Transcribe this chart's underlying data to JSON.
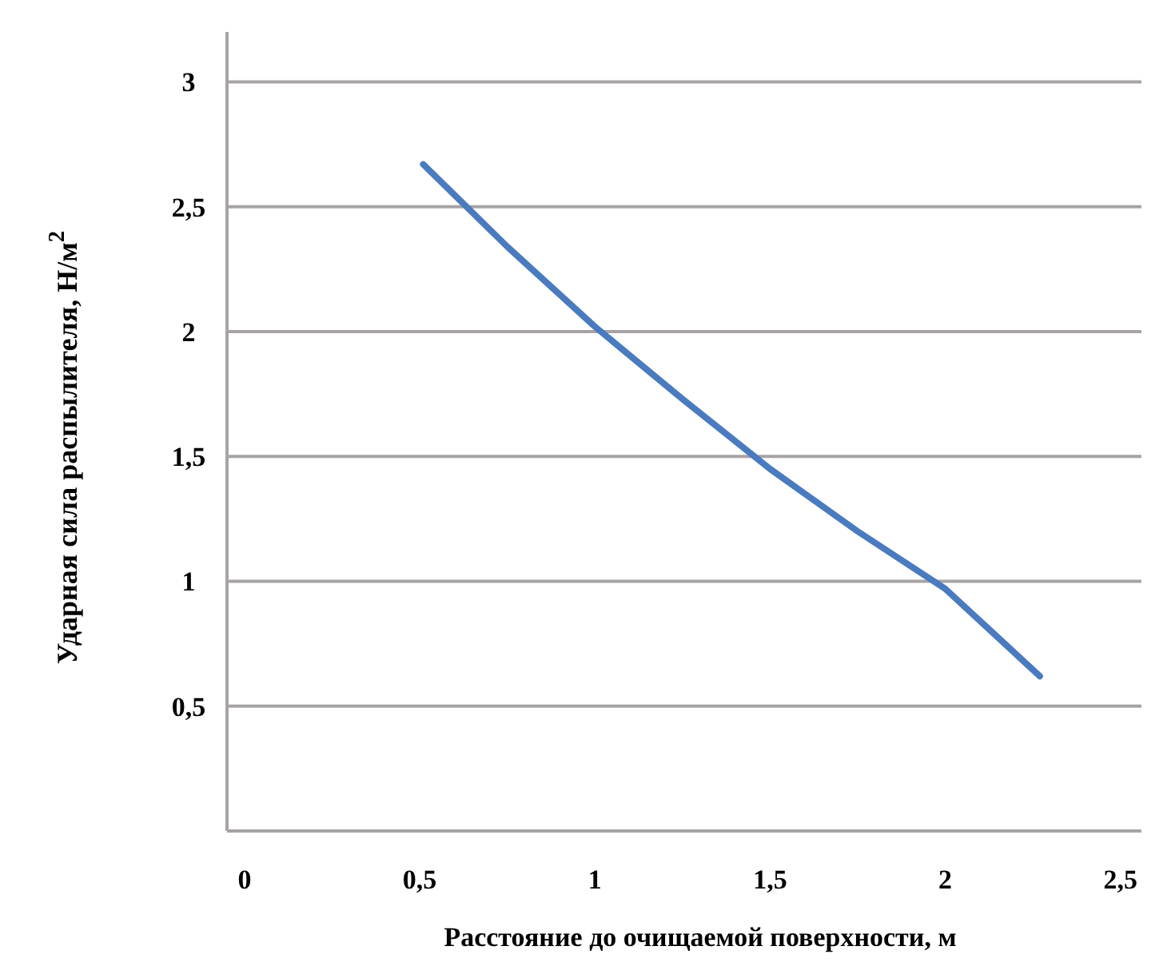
{
  "chart_data": {
    "type": "line",
    "xlabel": "Расстояние до очищаемой поверхности, м",
    "ylabel": "Ударная сила распылителя, Н/м$^{2}$",
    "x": [
      0.51,
      0.75,
      1,
      1.25,
      1.5,
      1.75,
      2,
      2.27
    ],
    "series": [
      {
        "color": "#4a7bbf",
        "values": [
          2.67,
          2.34,
          2.02,
          1.73,
          1.45,
          1.2,
          0.97,
          0.62
        ]
      }
    ],
    "xlim": [
      -0.05,
      2.56
    ],
    "xticks": [
      0,
      {
        "value": 0.5,
        "label": "0,5"
      },
      1,
      {
        "value": 1.5,
        "label": "1,5"
      },
      2,
      {
        "value": 2.5,
        "label": "2,5"
      }
    ],
    "ylim": [
      0,
      3.2
    ],
    "yticks": [
      {
        "value": 0.5,
        "label": "0,5"
      },
      1,
      {
        "value": 1.5,
        "label": "1,5"
      },
      2,
      {
        "value": 2.5,
        "label": "2,5"
      },
      3
    ],
    "grid": "y",
    "marker": "none",
    "line_style": "solid"
  }
}
